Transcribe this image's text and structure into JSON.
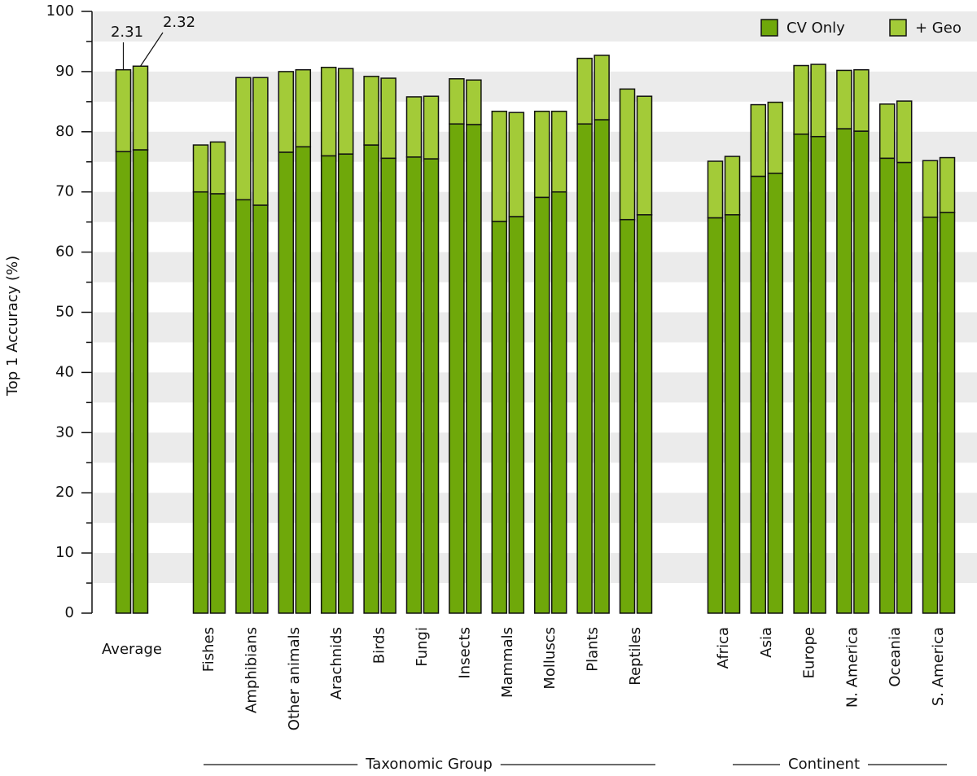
{
  "chart_data": {
    "type": "grouped-stacked-bar",
    "ylabel": "Top 1 Accuracy (%)",
    "categories": [
      "Average",
      "Fishes",
      "Amphibians",
      "Other animals",
      "Arachnids",
      "Birds",
      "Fungi",
      "Insects",
      "Mammals",
      "Molluscs",
      "Plants",
      "Reptiles",
      "Africa",
      "Asia",
      "Europe",
      "N. America",
      "Oceania",
      "S. America"
    ],
    "group_labels": [
      "Taxonomic Group",
      "Continent"
    ],
    "bar_labels": [
      "2.31",
      "2.32"
    ],
    "series": [
      {
        "name": "CV Only",
        "color": "#6fa80a",
        "values": [
          [
            76.7,
            77.0
          ],
          [
            70.0,
            69.7
          ],
          [
            68.7,
            67.8
          ],
          [
            76.6,
            77.5
          ],
          [
            76.0,
            76.3
          ],
          [
            77.8,
            75.6
          ],
          [
            75.8,
            75.5
          ],
          [
            81.3,
            81.2
          ],
          [
            65.1,
            65.9
          ],
          [
            69.1,
            70.0
          ],
          [
            81.3,
            82.0
          ],
          [
            65.4,
            66.2
          ],
          [
            65.7,
            66.2
          ],
          [
            72.6,
            73.1
          ],
          [
            79.6,
            79.2
          ],
          [
            80.5,
            80.1
          ],
          [
            75.6,
            74.9
          ],
          [
            65.8,
            66.6
          ]
        ]
      },
      {
        "name": "+ Geo",
        "color": "#a3cb38",
        "values": [
          [
            13.6,
            13.9
          ],
          [
            7.8,
            8.6
          ],
          [
            20.3,
            21.2
          ],
          [
            13.4,
            12.8
          ],
          [
            14.7,
            14.2
          ],
          [
            11.4,
            13.3
          ],
          [
            10.0,
            10.4
          ],
          [
            7.5,
            7.4
          ],
          [
            18.3,
            17.3
          ],
          [
            14.3,
            13.4
          ],
          [
            10.9,
            10.7
          ],
          [
            21.7,
            19.7
          ],
          [
            9.4,
            9.7
          ],
          [
            11.9,
            11.8
          ],
          [
            11.4,
            12.0
          ],
          [
            9.7,
            10.2
          ],
          [
            9.0,
            10.2
          ],
          [
            9.4,
            9.1
          ]
        ]
      }
    ],
    "ylim": [
      0,
      100
    ],
    "yticks": [
      0,
      10,
      20,
      30,
      40,
      50,
      60,
      70,
      80,
      90,
      100
    ],
    "grid": "bands",
    "legend": "upper right"
  }
}
